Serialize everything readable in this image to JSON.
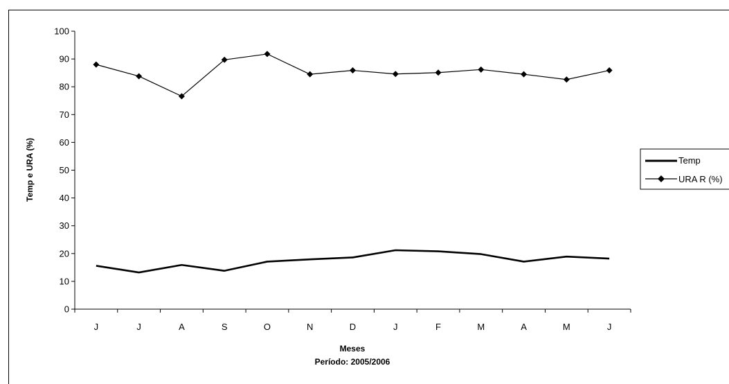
{
  "chart_data": {
    "type": "line",
    "title": "",
    "xlabel": "Meses",
    "xlabel_sub": "Período: 2005/2006",
    "ylabel": "Temp e URA (%)",
    "categories": [
      "J",
      "J",
      "A",
      "S",
      "O",
      "N",
      "D",
      "J",
      "F",
      "M",
      "A",
      "M",
      "J"
    ],
    "ylim": [
      0,
      100
    ],
    "yticks": [
      0,
      10,
      20,
      30,
      40,
      50,
      60,
      70,
      80,
      90,
      100
    ],
    "grid": false,
    "legend_position": "right",
    "series": [
      {
        "name": "Temp",
        "marker": "none",
        "color": "#000000",
        "values": [
          15.6,
          13.2,
          15.9,
          13.8,
          17.1,
          17.9,
          18.6,
          21.2,
          20.8,
          19.8,
          17.1,
          18.9,
          18.2
        ]
      },
      {
        "name": "URA R (%)",
        "marker": "diamond",
        "color": "#000000",
        "values": [
          88.0,
          83.8,
          76.6,
          89.7,
          91.8,
          84.5,
          85.9,
          84.6,
          85.1,
          86.2,
          84.5,
          82.6,
          85.9
        ]
      }
    ]
  }
}
